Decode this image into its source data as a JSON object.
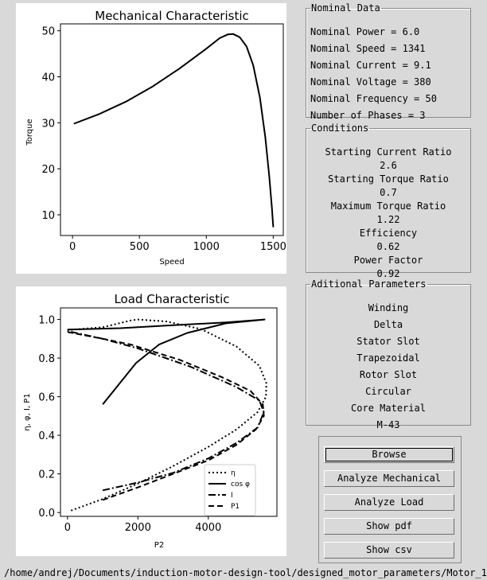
{
  "mechanical": {
    "chart_data": {
      "type": "line",
      "title": "Mechanical Characteristic",
      "xlabel": "Speed",
      "ylabel": "Torque",
      "xlim": [
        -90,
        1575
      ],
      "ylim": [
        5.5,
        51.5
      ],
      "xticks": [
        0,
        500,
        1000,
        1500
      ],
      "yticks": [
        10,
        20,
        30,
        40,
        50
      ],
      "series": [
        {
          "points": [
            [
              10,
              29.8
            ],
            [
              200,
              31.9
            ],
            [
              400,
              34.6
            ],
            [
              600,
              37.9
            ],
            [
              800,
              41.8
            ],
            [
              1000,
              46.1
            ],
            [
              1100,
              48.4
            ],
            [
              1160,
              49.2
            ],
            [
              1200,
              49.3
            ],
            [
              1250,
              48.6
            ],
            [
              1300,
              46.6
            ],
            [
              1350,
              42.5
            ],
            [
              1400,
              35.5
            ],
            [
              1440,
              27.0
            ],
            [
              1470,
              18.5
            ],
            [
              1490,
              11.5
            ],
            [
              1500,
              7.3
            ]
          ],
          "style": "solid"
        }
      ]
    }
  },
  "load": {
    "chart_data": {
      "type": "line",
      "title": "Load Characteristic",
      "xlabel": "P2",
      "ylabel": "η, φ, I, P1",
      "xlim": [
        -200,
        5950
      ],
      "ylim": [
        -0.02,
        1.06
      ],
      "xticks": [
        0,
        2000,
        4000
      ],
      "yticks": [
        0.0,
        0.2,
        0.4,
        0.6,
        0.8,
        1.0
      ],
      "yticklabels": [
        "0.0",
        "0.2",
        "0.4",
        "0.6",
        "0.8",
        "1.0"
      ],
      "legend_position": "bottom-right",
      "series": [
        {
          "name": "η",
          "style": "dotted",
          "points": [
            [
              100,
              0.01
            ],
            [
              1000,
              0.07
            ],
            [
              2000,
              0.15
            ],
            [
              3000,
              0.24
            ],
            [
              4000,
              0.34
            ],
            [
              4800,
              0.43
            ],
            [
              5400,
              0.52
            ],
            [
              5640,
              0.6
            ],
            [
              5650,
              0.67
            ],
            [
              5450,
              0.76
            ],
            [
              4800,
              0.86
            ],
            [
              3800,
              0.95
            ],
            [
              2800,
              0.99
            ],
            [
              2000,
              1.0
            ],
            [
              1800,
              0.995
            ],
            [
              1000,
              0.96
            ],
            [
              0,
              0.945
            ]
          ]
        },
        {
          "name": "cos φ",
          "style": "solid",
          "points": [
            [
              1000,
              0.56
            ],
            [
              1950,
              0.775
            ],
            [
              2600,
              0.87
            ],
            [
              3400,
              0.93
            ],
            [
              4500,
              0.98
            ],
            [
              5600,
              1.0
            ],
            [
              4500,
              0.985
            ],
            [
              3000,
              0.97
            ],
            [
              1500,
              0.955
            ],
            [
              0,
              0.948
            ]
          ]
        },
        {
          "name": "I",
          "style": "dashdot",
          "points": [
            [
              1000,
              0.115
            ],
            [
              2000,
              0.155
            ],
            [
              3000,
              0.205
            ],
            [
              4000,
              0.28
            ],
            [
              4800,
              0.36
            ],
            [
              5400,
              0.44
            ],
            [
              5580,
              0.52
            ],
            [
              5450,
              0.58
            ],
            [
              4800,
              0.65
            ],
            [
              3500,
              0.755
            ],
            [
              2000,
              0.85
            ],
            [
              1000,
              0.9
            ],
            [
              0,
              0.94
            ]
          ]
        },
        {
          "name": "P1",
          "style": "dashed",
          "points": [
            [
              1000,
              0.065
            ],
            [
              2000,
              0.13
            ],
            [
              3000,
              0.2
            ],
            [
              4000,
              0.27
            ],
            [
              4800,
              0.35
            ],
            [
              5350,
              0.43
            ],
            [
              5580,
              0.5
            ],
            [
              5550,
              0.56
            ],
            [
              5200,
              0.63
            ],
            [
              4400,
              0.7
            ],
            [
              3200,
              0.79
            ],
            [
              1800,
              0.87
            ],
            [
              1000,
              0.9
            ],
            [
              0,
              0.935
            ]
          ]
        }
      ]
    }
  },
  "nominal": {
    "legend": "Nominal Data",
    "lines": [
      "Nominal Power = 6.0",
      "Nominal Speed = 1341",
      "Nominal Current = 9.1",
      "Nominal Voltage = 380",
      "Nominal Frequency = 50",
      "Number of Phases = 3"
    ]
  },
  "conditions": {
    "legend": "Conditions",
    "lines": [
      "Starting Current Ratio",
      "2.6",
      "Starting Torque Ratio",
      "0.7",
      "Maximum Torque Ratio",
      "1.22",
      "Efficiency",
      "0.62",
      "Power Factor",
      "0.92"
    ]
  },
  "additional": {
    "legend": "Aditional Parameters",
    "lines": [
      "Winding",
      "Delta",
      "Stator Slot",
      "Trapezoidal",
      "Rotor Slot",
      "Circular",
      "Core Material",
      "M-43"
    ]
  },
  "buttons": {
    "browse": "Browse",
    "analyze_mechanical": "Analyze Mechanical",
    "analyze_load": "Analyze Load",
    "show_pdf": "Show pdf",
    "show_csv": "Show csv"
  },
  "path": "/home/andrej/Documents/induction-motor-design-tool/designed_motor_parameters/Motor_1"
}
